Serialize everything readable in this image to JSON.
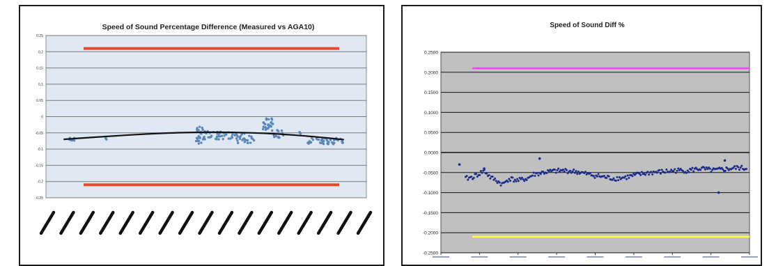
{
  "chart_data": [
    {
      "type": "scatter",
      "title": "Speed of Sound Percentage Difference (Measured vs AGA10)",
      "xlabel": "",
      "ylabel": "",
      "ylim": [
        -0.25,
        0.25
      ],
      "y_ticks": [
        "0.25",
        "0.2",
        "0.15",
        "0.1",
        "0.05",
        "0",
        "-0.05",
        "-0.1",
        "-0.15",
        "-0.2",
        "-0.25"
      ],
      "x_tick_count": 17,
      "x_tick_labels_legible": false,
      "grid": true,
      "plot_background": "#dfe8f3",
      "colors": {
        "points": "#5b86b8",
        "limits": "#e8492a",
        "trend": "#111111"
      },
      "limit_lines": [
        0.21,
        -0.21
      ],
      "trend": {
        "type": "polynomial",
        "x": [
          0,
          0.15,
          0.3,
          0.45,
          0.6,
          0.75,
          0.9,
          1.0
        ],
        "values": [
          -0.07,
          -0.061,
          -0.053,
          -0.048,
          -0.048,
          -0.052,
          -0.062,
          -0.071
        ]
      },
      "clusters": [
        {
          "x0": 0.02,
          "x1": 0.04,
          "y0": -0.075,
          "y1": -0.065,
          "n": 8
        },
        {
          "x0": 0.15,
          "x1": 0.16,
          "y0": -0.072,
          "y1": -0.066,
          "n": 3
        },
        {
          "x0": 0.47,
          "x1": 0.5,
          "y0": -0.085,
          "y1": -0.03,
          "n": 25
        },
        {
          "x0": 0.5,
          "x1": 0.62,
          "y0": -0.07,
          "y1": -0.045,
          "n": 45
        },
        {
          "x0": 0.62,
          "x1": 0.68,
          "y0": -0.085,
          "y1": -0.05,
          "n": 25
        },
        {
          "x0": 0.71,
          "x1": 0.75,
          "y0": -0.045,
          "y1": -0.005,
          "n": 28
        },
        {
          "x0": 0.75,
          "x1": 0.79,
          "y0": -0.065,
          "y1": -0.04,
          "n": 12
        },
        {
          "x0": 0.84,
          "x1": 0.85,
          "y0": -0.055,
          "y1": -0.04,
          "n": 3
        },
        {
          "x0": 0.87,
          "x1": 1.0,
          "y0": -0.085,
          "y1": -0.065,
          "n": 45
        }
      ]
    },
    {
      "type": "scatter",
      "title": "Speed of Sound Diff %",
      "xlabel": "",
      "ylabel": "",
      "ylim": [
        -0.25,
        0.25
      ],
      "y_ticks": [
        "0.2500",
        "0.2000",
        "0.1500",
        "0.1000",
        "0.0500",
        "0.0000",
        "-0.0500",
        "-0.1000",
        "-0.1500",
        "-0.2000",
        "-0.2500"
      ],
      "x_tick_count": 9,
      "x_tick_labels_legible": false,
      "grid": true,
      "plot_background": "#c0c0c0",
      "colors": {
        "points": "#1c2a8a",
        "upper_limit": "#ff3cff",
        "lower_limit": "#ffff33"
      },
      "limit_lines": [
        0.21,
        -0.21
      ],
      "series": [
        {
          "x": [
            0.08,
            0.1,
            0.12,
            0.14,
            0.16,
            0.18,
            0.2,
            0.22,
            0.25,
            0.28,
            0.3,
            0.33,
            0.36,
            0.4,
            0.44,
            0.48,
            0.52,
            0.56,
            0.6,
            0.64,
            0.68,
            0.72,
            0.76,
            0.8,
            0.84,
            0.88,
            0.92,
            0.96,
            0.99
          ],
          "values": [
            -0.065,
            -0.062,
            -0.055,
            -0.045,
            -0.062,
            -0.07,
            -0.08,
            -0.065,
            -0.07,
            -0.065,
            -0.055,
            -0.05,
            -0.047,
            -0.045,
            -0.048,
            -0.055,
            -0.06,
            -0.065,
            -0.062,
            -0.055,
            -0.05,
            -0.048,
            -0.045,
            -0.045,
            -0.04,
            -0.045,
            -0.042,
            -0.038,
            -0.04
          ]
        }
      ],
      "outliers": [
        {
          "x": 0.06,
          "y": -0.03
        },
        {
          "x": 0.14,
          "y": -0.04
        },
        {
          "x": 0.32,
          "y": -0.015
        },
        {
          "x": 0.92,
          "y": -0.02
        },
        {
          "x": 0.9,
          "y": -0.1
        }
      ]
    }
  ]
}
